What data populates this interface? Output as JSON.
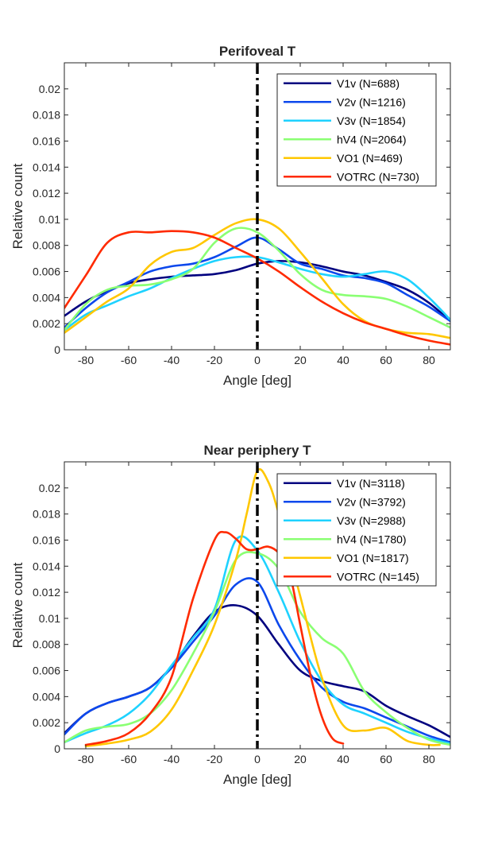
{
  "chart_data": [
    {
      "type": "line",
      "title": "Perifoveal T",
      "xlabel": "Angle [deg]",
      "ylabel": "Relative count",
      "xlim": [
        -90,
        90
      ],
      "ylim": [
        0,
        0.022
      ],
      "xticks": [
        -80,
        -60,
        -40,
        -20,
        0,
        20,
        40,
        60,
        80
      ],
      "xtick_labels": [
        "-80",
        "-60",
        "-40",
        "-20",
        "0",
        "20",
        "40",
        "60",
        "80"
      ],
      "yticks": [
        0,
        0.002,
        0.004,
        0.006,
        0.008,
        0.01,
        0.012,
        0.014,
        0.016,
        0.018,
        0.02
      ],
      "ytick_labels": [
        "0",
        "0.002",
        "0.004",
        "0.006",
        "0.008",
        "0.01",
        "0.012",
        "0.014",
        "0.016",
        "0.018",
        "0.02"
      ],
      "grid": false,
      "legend_position": "top-right",
      "reference_line": {
        "x": 0,
        "style": "dash-dot",
        "color": "#000000"
      },
      "series": [
        {
          "name": "V1v (N=688)",
          "color": "#00007f",
          "x": [
            -90,
            -80,
            -70,
            -60,
            -50,
            -40,
            -30,
            -20,
            -10,
            0,
            10,
            20,
            30,
            40,
            50,
            60,
            70,
            80,
            90
          ],
          "y": [
            0.0026,
            0.0037,
            0.0045,
            0.0051,
            0.0054,
            0.0056,
            0.0057,
            0.0058,
            0.0061,
            0.0066,
            0.0068,
            0.0067,
            0.0064,
            0.006,
            0.0057,
            0.0052,
            0.0046,
            0.0036,
            0.0022
          ]
        },
        {
          "name": "V2v (N=1216)",
          "color": "#0c48ec",
          "x": [
            -90,
            -80,
            -70,
            -60,
            -50,
            -40,
            -30,
            -20,
            -10,
            0,
            10,
            20,
            30,
            40,
            50,
            60,
            70,
            80,
            90
          ],
          "y": [
            0.0017,
            0.0032,
            0.0044,
            0.0052,
            0.006,
            0.0064,
            0.0066,
            0.0071,
            0.0079,
            0.0086,
            0.0077,
            0.0066,
            0.0062,
            0.0057,
            0.0055,
            0.0051,
            0.0042,
            0.0033,
            0.0022
          ]
        },
        {
          "name": "V3v (N=1854)",
          "color": "#1ed2ff",
          "x": [
            -90,
            -80,
            -70,
            -60,
            -50,
            -40,
            -30,
            -20,
            -10,
            0,
            10,
            20,
            30,
            40,
            50,
            60,
            70,
            80,
            90
          ],
          "y": [
            0.0015,
            0.0027,
            0.0034,
            0.0041,
            0.0047,
            0.0055,
            0.0062,
            0.0068,
            0.0071,
            0.0071,
            0.0067,
            0.0062,
            0.0058,
            0.0056,
            0.0058,
            0.006,
            0.0054,
            0.004,
            0.0023
          ]
        },
        {
          "name": "hV4 (N=2064)",
          "color": "#8aff73",
          "x": [
            -90,
            -80,
            -70,
            -60,
            -50,
            -40,
            -30,
            -20,
            -10,
            0,
            10,
            20,
            30,
            40,
            50,
            60,
            70,
            80,
            90
          ],
          "y": [
            0.0015,
            0.0035,
            0.0046,
            0.0049,
            0.005,
            0.0054,
            0.0062,
            0.0082,
            0.0093,
            0.009,
            0.0076,
            0.0058,
            0.0046,
            0.0042,
            0.0041,
            0.0039,
            0.0033,
            0.0025,
            0.0017
          ]
        },
        {
          "name": "VO1 (N=469)",
          "color": "#ffc700",
          "x": [
            -90,
            -80,
            -70,
            -60,
            -50,
            -40,
            -30,
            -20,
            -10,
            0,
            10,
            20,
            30,
            40,
            50,
            60,
            70,
            80,
            90
          ],
          "y": [
            0.0013,
            0.0025,
            0.0037,
            0.0047,
            0.0065,
            0.0075,
            0.0078,
            0.0088,
            0.0097,
            0.01,
            0.0093,
            0.0075,
            0.0055,
            0.0035,
            0.0022,
            0.0016,
            0.0013,
            0.0012,
            0.0009
          ]
        },
        {
          "name": "VOTRC (N=730)",
          "color": "#ff2a00",
          "x": [
            -90,
            -80,
            -70,
            -60,
            -50,
            -40,
            -30,
            -20,
            -10,
            0,
            10,
            20,
            30,
            40,
            50,
            60,
            70,
            80,
            90
          ],
          "y": [
            0.0032,
            0.0057,
            0.0082,
            0.009,
            0.009,
            0.0091,
            0.009,
            0.0086,
            0.0078,
            0.007,
            0.006,
            0.0048,
            0.0037,
            0.0028,
            0.0021,
            0.0016,
            0.0011,
            0.0007,
            0.0004
          ]
        }
      ]
    },
    {
      "type": "line",
      "title": "Near periphery T",
      "xlabel": "Angle [deg]",
      "ylabel": "Relative count",
      "xlim": [
        -90,
        90
      ],
      "ylim": [
        0,
        0.022
      ],
      "xticks": [
        -80,
        -60,
        -40,
        -20,
        0,
        20,
        40,
        60,
        80
      ],
      "xtick_labels": [
        "-80",
        "-60",
        "-40",
        "-20",
        "0",
        "20",
        "40",
        "60",
        "80"
      ],
      "yticks": [
        0,
        0.002,
        0.004,
        0.006,
        0.008,
        0.01,
        0.012,
        0.014,
        0.016,
        0.018,
        0.02
      ],
      "ytick_labels": [
        "0",
        "0.002",
        "0.004",
        "0.006",
        "0.008",
        "0.01",
        "0.012",
        "0.014",
        "0.016",
        "0.018",
        "0.02"
      ],
      "grid": false,
      "legend_position": "top-right",
      "reference_line": {
        "x": 0,
        "style": "dash-dot",
        "color": "#000000"
      },
      "series": [
        {
          "name": "V1v (N=3118)",
          "color": "#00007f",
          "x": [
            -90,
            -80,
            -70,
            -60,
            -50,
            -40,
            -30,
            -20,
            -10,
            0,
            10,
            20,
            30,
            40,
            50,
            60,
            70,
            80,
            90
          ],
          "y": [
            0.0012,
            0.0027,
            0.0035,
            0.004,
            0.0047,
            0.0063,
            0.0086,
            0.0105,
            0.011,
            0.0102,
            0.008,
            0.006,
            0.0052,
            0.0048,
            0.0044,
            0.0033,
            0.0025,
            0.0018,
            0.0009
          ]
        },
        {
          "name": "V2v (N=3792)",
          "color": "#0c48ec",
          "x": [
            -90,
            -80,
            -70,
            -60,
            -50,
            -40,
            -30,
            -20,
            -10,
            0,
            10,
            20,
            30,
            40,
            50,
            60,
            70,
            80,
            90
          ],
          "y": [
            0.0011,
            0.0027,
            0.0035,
            0.004,
            0.0047,
            0.0062,
            0.0082,
            0.0102,
            0.0126,
            0.0128,
            0.0095,
            0.0068,
            0.0047,
            0.0036,
            0.0031,
            0.0024,
            0.0017,
            0.001,
            0.0005
          ]
        },
        {
          "name": "V3v (N=2988)",
          "color": "#1ed2ff",
          "x": [
            -90,
            -80,
            -70,
            -60,
            -50,
            -40,
            -30,
            -20,
            -10,
            0,
            10,
            20,
            30,
            40,
            50,
            60,
            70,
            80,
            90
          ],
          "y": [
            0.0005,
            0.0012,
            0.0018,
            0.0027,
            0.0042,
            0.0064,
            0.0085,
            0.0107,
            0.016,
            0.0152,
            0.012,
            0.0082,
            0.0052,
            0.0034,
            0.0027,
            0.002,
            0.0013,
            0.0008,
            0.0004
          ]
        },
        {
          "name": "hV4 (N=1780)",
          "color": "#8aff73",
          "x": [
            -90,
            -80,
            -70,
            -60,
            -50,
            -40,
            -30,
            -20,
            -10,
            0,
            10,
            20,
            30,
            40,
            50,
            60,
            70,
            80,
            90
          ],
          "y": [
            0.0005,
            0.0014,
            0.0017,
            0.0019,
            0.0027,
            0.0045,
            0.0073,
            0.0105,
            0.0145,
            0.015,
            0.0138,
            0.0105,
            0.0085,
            0.0073,
            0.0044,
            0.0028,
            0.0016,
            0.0007,
            0.0003
          ]
        },
        {
          "name": "VO1 (N=1817)",
          "color": "#ffc700",
          "x": [
            -80,
            -70,
            -60,
            -50,
            -40,
            -30,
            -20,
            -10,
            -5,
            0,
            5,
            10,
            20,
            30,
            40,
            50,
            60,
            70,
            80,
            85
          ],
          "y": [
            0.0002,
            0.0004,
            0.0007,
            0.0013,
            0.003,
            0.006,
            0.0095,
            0.0145,
            0.018,
            0.0213,
            0.0205,
            0.018,
            0.0117,
            0.0055,
            0.0018,
            0.0014,
            0.0016,
            0.0006,
            0.0003,
            0.0003
          ]
        },
        {
          "name": "VOTRC (N=145)",
          "color": "#ff2a00",
          "x": [
            -80,
            -70,
            -60,
            -50,
            -40,
            -30,
            -20,
            -15,
            -10,
            -5,
            0,
            5,
            10,
            15,
            20,
            25,
            30,
            35,
            40
          ],
          "y": [
            0.0003,
            0.0006,
            0.0012,
            0.0027,
            0.0055,
            0.0115,
            0.016,
            0.0166,
            0.0161,
            0.0153,
            0.0153,
            0.0155,
            0.015,
            0.0135,
            0.0095,
            0.0055,
            0.0025,
            0.0008,
            0.0004
          ]
        }
      ]
    }
  ]
}
